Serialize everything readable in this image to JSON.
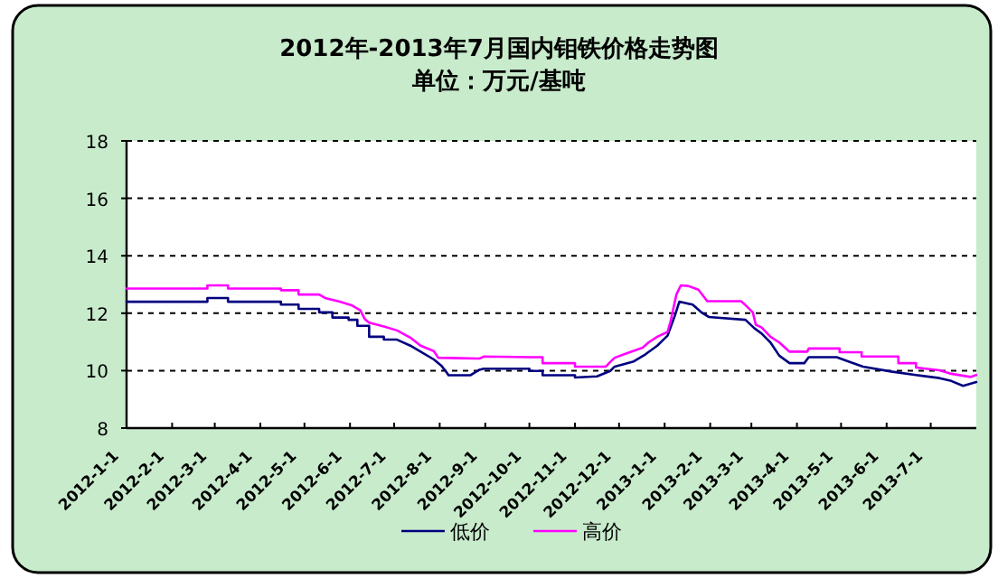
{
  "chart_data": {
    "type": "line",
    "title": "2012年-2013年7月国内钼铁价格走势图",
    "subtitle": "单位：万元/基吨",
    "xlim": [
      "2012-01-01",
      "2013-08-01"
    ],
    "ylim": [
      8,
      18
    ],
    "yticks": [
      8,
      10,
      12,
      14,
      16,
      18
    ],
    "xticks": [
      {
        "value": "2012-01-01",
        "label": "2012-1-1"
      },
      {
        "value": "2012-02-01",
        "label": "2012-2-1"
      },
      {
        "value": "2012-03-01",
        "label": "2012-3-1"
      },
      {
        "value": "2012-04-01",
        "label": "2012-4-1"
      },
      {
        "value": "2012-05-01",
        "label": "2012-5-1"
      },
      {
        "value": "2012-06-01",
        "label": "2012-6-1"
      },
      {
        "value": "2012-07-01",
        "label": "2012-7-1"
      },
      {
        "value": "2012-08-01",
        "label": "2012-8-1"
      },
      {
        "value": "2012-09-01",
        "label": "2012-9-1"
      },
      {
        "value": "2012-10-01",
        "label": "2012-10-1"
      },
      {
        "value": "2012-11-01",
        "label": "2012-11-1"
      },
      {
        "value": "2012-12-01",
        "label": "2012-12-1"
      },
      {
        "value": "2013-01-01",
        "label": "2013-1-1"
      },
      {
        "value": "2013-02-01",
        "label": "2013-2-1"
      },
      {
        "value": "2013-03-01",
        "label": "2013-3-1"
      },
      {
        "value": "2013-04-01",
        "label": "2013-4-1"
      },
      {
        "value": "2013-05-01",
        "label": "2013-5-1"
      },
      {
        "value": "2013-06-01",
        "label": "2013-6-1"
      },
      {
        "value": "2013-07-01",
        "label": "2013-7-1"
      }
    ],
    "grid": "y",
    "legend": "bottom",
    "marker": "none",
    "line_style": "solid",
    "series": [
      {
        "name": "低价",
        "color": "#000080",
        "x": [
          "2012-01-01",
          "2012-02-25",
          "2012-02-25",
          "2012-03-10",
          "2012-03-10",
          "2012-04-15",
          "2012-04-15",
          "2012-04-27",
          "2012-04-27",
          "2012-05-11",
          "2012-05-11",
          "2012-05-20",
          "2012-05-20",
          "2012-05-31",
          "2012-05-31",
          "2012-06-06",
          "2012-06-06",
          "2012-06-14",
          "2012-06-14",
          "2012-06-24",
          "2012-06-24",
          "2012-07-03",
          "2012-07-12",
          "2012-07-19",
          "2012-07-28",
          "2012-08-02",
          "2012-08-06",
          "2012-08-07",
          "2012-08-22",
          "2012-08-28",
          "2012-08-31",
          "2012-10-01",
          "2012-10-01",
          "2012-10-10",
          "2012-10-10",
          "2012-11-01",
          "2012-11-01",
          "2012-11-16",
          "2012-11-25",
          "2012-11-28",
          "2012-12-11",
          "2012-12-19",
          "2012-12-27",
          "2013-01-03",
          "2013-01-08",
          "2013-01-11",
          "2013-01-20",
          "2013-01-26",
          "2013-01-31",
          "2013-02-25",
          "2013-03-03",
          "2013-03-08",
          "2013-03-14",
          "2013-03-20",
          "2013-03-27",
          "2013-04-06",
          "2013-04-09",
          "2013-04-28",
          "2013-05-06",
          "2013-05-16",
          "2013-06-04",
          "2013-06-22",
          "2013-07-07",
          "2013-07-15",
          "2013-07-23",
          "2013-08-01"
        ],
        "values": [
          12.4,
          12.4,
          12.53,
          12.53,
          12.4,
          12.4,
          12.3,
          12.3,
          12.15,
          12.15,
          12.03,
          12.03,
          11.85,
          11.85,
          11.77,
          11.77,
          11.56,
          11.56,
          11.18,
          11.18,
          11.08,
          11.08,
          10.87,
          10.66,
          10.39,
          10.18,
          9.92,
          9.84,
          9.84,
          10.03,
          10.07,
          10.07,
          9.99,
          9.99,
          9.84,
          9.84,
          9.76,
          9.8,
          9.99,
          10.14,
          10.32,
          10.57,
          10.87,
          11.22,
          11.92,
          12.4,
          12.3,
          12.03,
          11.87,
          11.77,
          11.48,
          11.29,
          10.98,
          10.52,
          10.26,
          10.26,
          10.47,
          10.47,
          10.32,
          10.14,
          9.97,
          9.84,
          9.74,
          9.64,
          9.47,
          9.6
        ]
      },
      {
        "name": "高价",
        "color": "#ff00ff",
        "x": [
          "2012-01-01",
          "2012-02-25",
          "2012-02-25",
          "2012-03-10",
          "2012-03-10",
          "2012-04-15",
          "2012-04-15",
          "2012-04-27",
          "2012-04-27",
          "2012-05-11",
          "2012-05-15",
          "2012-05-25",
          "2012-06-02",
          "2012-06-08",
          "2012-06-11",
          "2012-06-14",
          "2012-06-24",
          "2012-07-03",
          "2012-07-12",
          "2012-07-19",
          "2012-07-28",
          "2012-07-31",
          "2012-08-28",
          "2012-08-31",
          "2012-10-01",
          "2012-10-10",
          "2012-10-10",
          "2012-11-01",
          "2012-11-01",
          "2012-11-22",
          "2012-11-25",
          "2012-11-28",
          "2012-12-07",
          "2012-12-17",
          "2012-12-21",
          "2012-12-27",
          "2013-01-03",
          "2013-01-05",
          "2013-01-09",
          "2013-01-12",
          "2013-01-17",
          "2013-01-24",
          "2013-01-30",
          "2013-02-22",
          "2013-02-25",
          "2013-03-02",
          "2013-03-04",
          "2013-03-08",
          "2013-03-14",
          "2013-03-20",
          "2013-03-27",
          "2013-04-08",
          "2013-04-09",
          "2013-04-30",
          "2013-04-30",
          "2013-05-15",
          "2013-05-15",
          "2013-06-09",
          "2013-06-09",
          "2013-06-21",
          "2013-06-21",
          "2013-07-07",
          "2013-07-15",
          "2013-07-28",
          "2013-08-01"
        ],
        "values": [
          12.86,
          12.86,
          12.97,
          12.97,
          12.86,
          12.86,
          12.8,
          12.8,
          12.65,
          12.65,
          12.53,
          12.4,
          12.28,
          12.1,
          11.8,
          11.67,
          11.54,
          11.4,
          11.15,
          10.87,
          10.68,
          10.45,
          10.42,
          10.49,
          10.47,
          10.47,
          10.26,
          10.26,
          10.14,
          10.14,
          10.3,
          10.45,
          10.62,
          10.8,
          10.98,
          11.18,
          11.35,
          11.71,
          12.65,
          12.97,
          12.95,
          12.82,
          12.42,
          12.42,
          12.28,
          12.03,
          11.6,
          11.5,
          11.18,
          10.98,
          10.66,
          10.66,
          10.77,
          10.77,
          10.64,
          10.64,
          10.49,
          10.49,
          10.26,
          10.26,
          10.11,
          10.01,
          9.89,
          9.78,
          9.85
        ]
      }
    ]
  }
}
